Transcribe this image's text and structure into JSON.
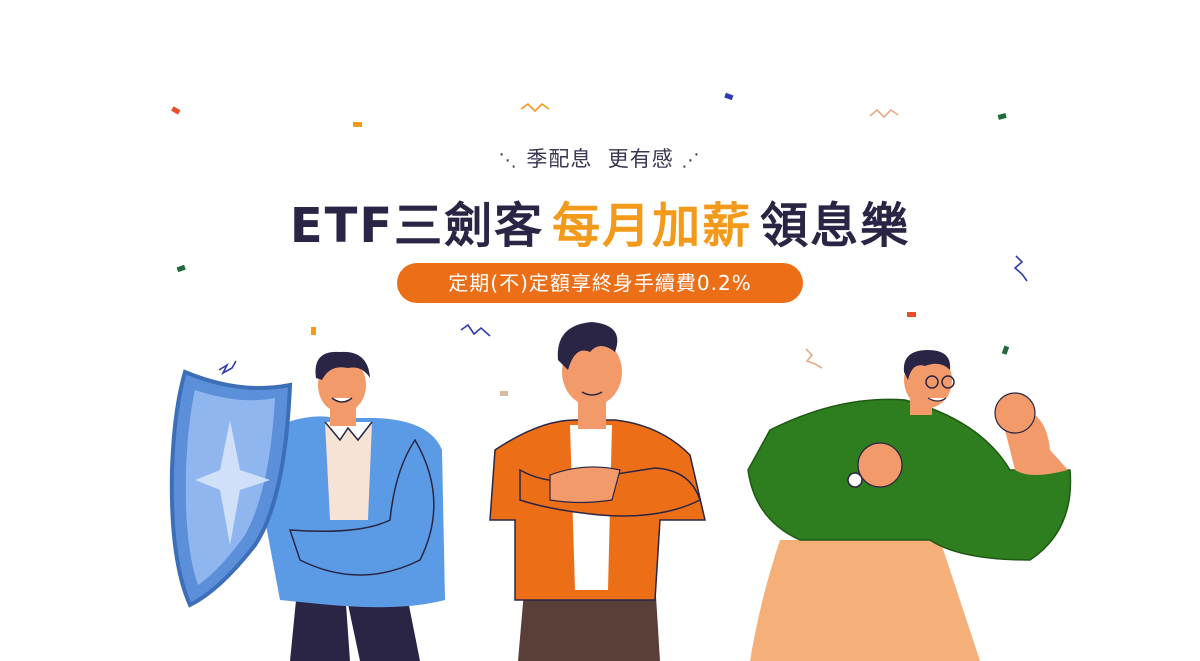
{
  "banner": {
    "tagline": "季配息  更有感",
    "headline_prefix": "ETF三劍客",
    "headline_highlight": "每月加薪",
    "headline_suffix": "領息樂",
    "promo_pill": "定期(不)定額享終身手續費0.2%"
  },
  "colors": {
    "headline_dark": "#2a2545",
    "highlight_orange": "#f39a1a",
    "pill_orange": "#ec6f18",
    "shield_blue": "#5b8fd9",
    "jacket_blue": "#5b9be6",
    "jacket_orange": "#ec6f18",
    "sweater_green": "#2e7d1e"
  },
  "icons": [
    "shield-icon"
  ]
}
